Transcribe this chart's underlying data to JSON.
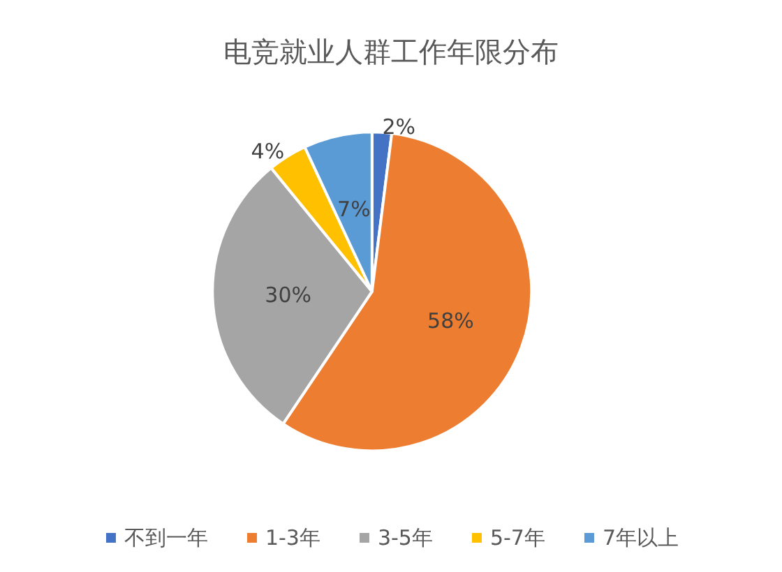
{
  "chart_data": {
    "type": "pie",
    "title": "电竞就业人群工作年限分布",
    "categories": [
      "不到一年",
      "1-3年",
      "3-5年",
      "5-7年",
      "7年以上"
    ],
    "values": [
      2,
      58,
      30,
      4,
      7
    ],
    "colors": [
      "#4472c4",
      "#ed7d31",
      "#a5a5a5",
      "#ffc000",
      "#5b9bd5"
    ],
    "value_labels": [
      "2%",
      "58%",
      "30%",
      "4%",
      "7%"
    ],
    "legend": "bottom"
  }
}
